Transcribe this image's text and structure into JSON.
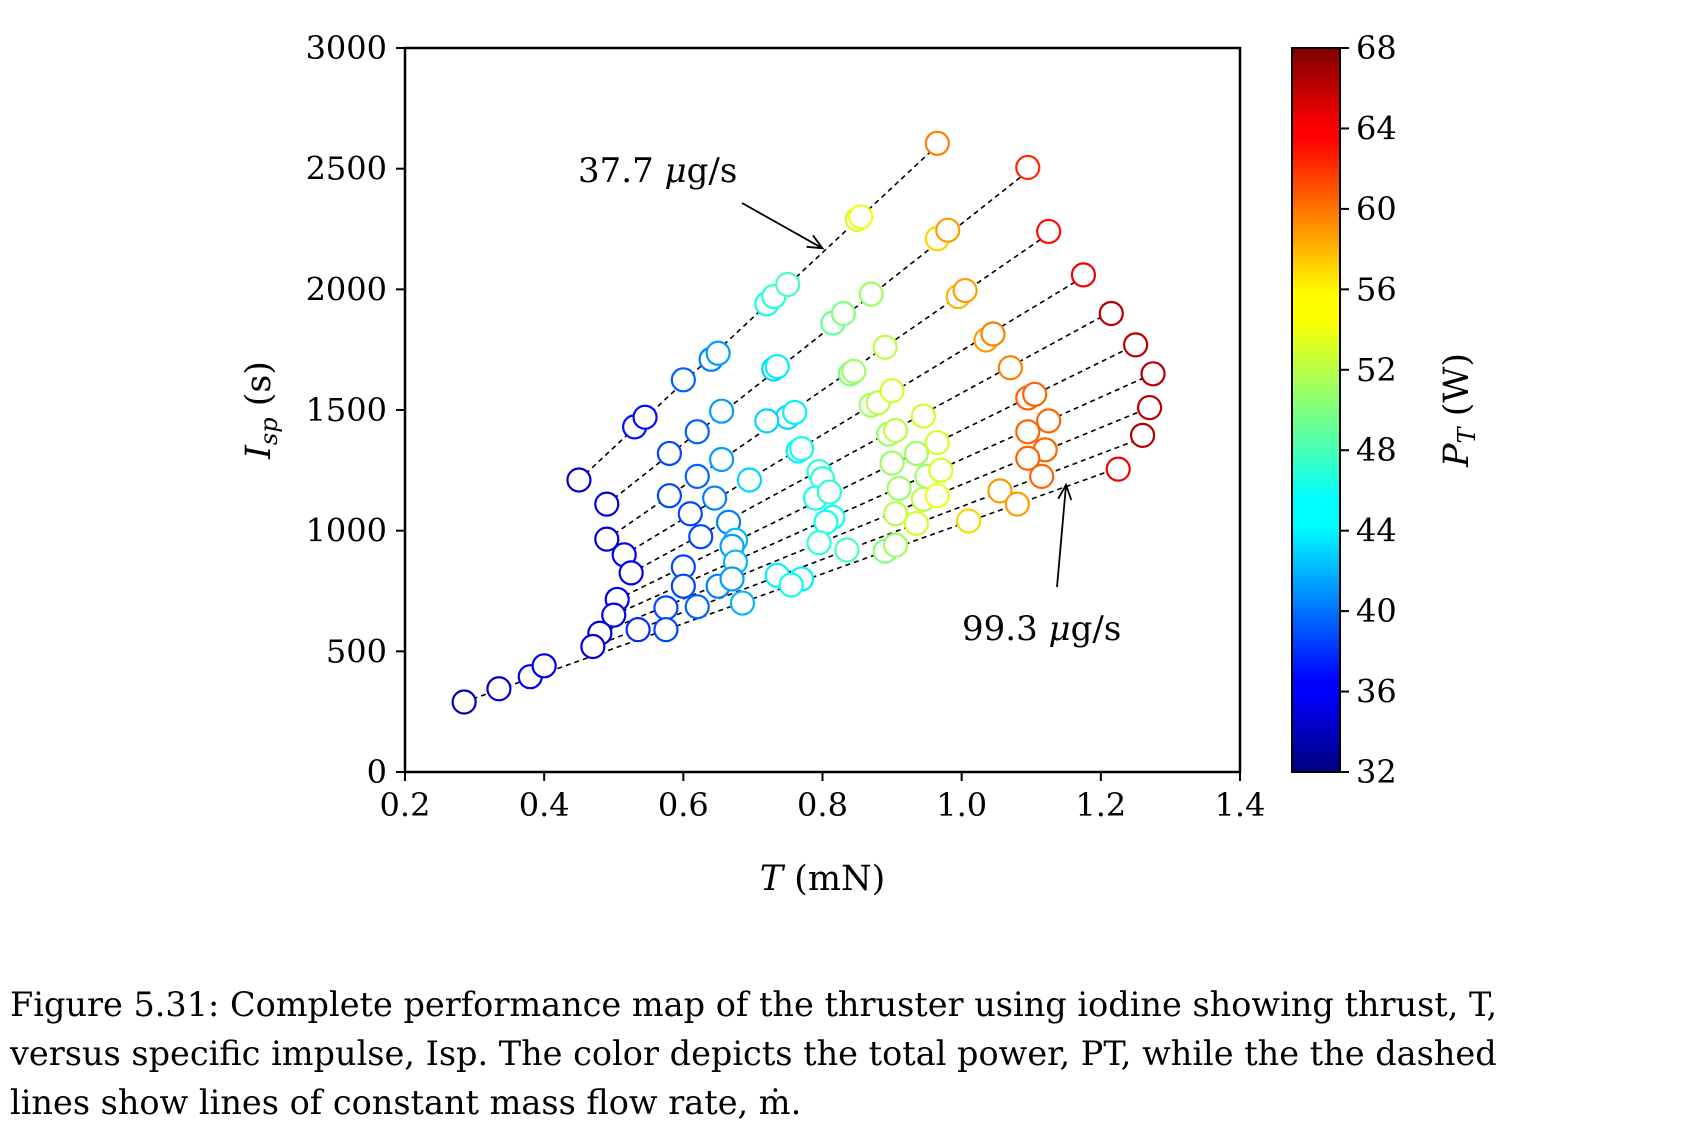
{
  "chart_data": {
    "type": "scatter",
    "xlabel": "T (mN)",
    "ylabel": "I_sp (s)",
    "colorbar_label": "P_T (W)",
    "colormap": "jet",
    "xlim": [
      0.2,
      1.4
    ],
    "ylim": [
      0,
      3000
    ],
    "xticks": [
      "0.2",
      "0.4",
      "0.6",
      "0.8",
      "1.0",
      "1.2",
      "1.4"
    ],
    "yticks": [
      "0",
      "500",
      "1000",
      "1500",
      "2000",
      "2500",
      "3000"
    ],
    "colorbar_range": [
      32,
      68
    ],
    "colorbar_ticks": [
      "32",
      "36",
      "40",
      "44",
      "48",
      "52",
      "56",
      "60",
      "64",
      "68"
    ],
    "annotations": [
      {
        "text": "37.7 μg/s",
        "points_to": [
          0.8,
          2170
        ]
      },
      {
        "text": "99.3 μg/s",
        "points_to": [
          1.15,
          1190
        ]
      }
    ],
    "series": [
      {
        "dashed_line": [
          [
            0.45,
            1210
          ],
          [
            0.97,
            2610
          ]
        ],
        "points": [
          [
            0.45,
            1210,
            35
          ],
          [
            0.53,
            1430,
            37
          ],
          [
            0.545,
            1470,
            37
          ],
          [
            0.6,
            1625,
            40
          ],
          [
            0.64,
            1710,
            41
          ],
          [
            0.65,
            1735,
            42
          ],
          [
            0.72,
            1940,
            46
          ],
          [
            0.73,
            1970,
            47
          ],
          [
            0.75,
            2020,
            48
          ],
          [
            0.85,
            2290,
            53
          ],
          [
            0.855,
            2300,
            54
          ],
          [
            0.965,
            2605,
            59
          ]
        ]
      },
      {
        "dashed_line": [
          [
            0.49,
            1110
          ],
          [
            1.1,
            2500
          ]
        ],
        "points": [
          [
            0.49,
            1110,
            35
          ],
          [
            0.58,
            1320,
            39
          ],
          [
            0.62,
            1410,
            40
          ],
          [
            0.655,
            1495,
            42
          ],
          [
            0.73,
            1670,
            44
          ],
          [
            0.735,
            1680,
            45
          ],
          [
            0.75,
            1470,
            44
          ],
          [
            0.76,
            1490,
            45
          ],
          [
            0.815,
            1860,
            49
          ],
          [
            0.83,
            1900,
            50
          ],
          [
            0.87,
            1980,
            51
          ],
          [
            0.965,
            2210,
            56
          ],
          [
            0.98,
            2245,
            58
          ],
          [
            1.095,
            2505,
            62
          ]
        ]
      },
      {
        "dashed_line": [
          [
            0.49,
            965
          ],
          [
            1.13,
            2240
          ]
        ],
        "points": [
          [
            0.49,
            965,
            35
          ],
          [
            0.58,
            1145,
            39
          ],
          [
            0.62,
            1225,
            40
          ],
          [
            0.655,
            1295,
            42
          ],
          [
            0.72,
            1455,
            44
          ],
          [
            0.765,
            1330,
            45
          ],
          [
            0.77,
            1340,
            46
          ],
          [
            0.84,
            1650,
            50
          ],
          [
            0.845,
            1660,
            51
          ],
          [
            0.89,
            1760,
            52
          ],
          [
            0.995,
            1970,
            57
          ],
          [
            1.005,
            1995,
            58
          ],
          [
            1.125,
            2240,
            63
          ]
        ]
      },
      {
        "dashed_line": [
          [
            0.515,
            900
          ],
          [
            1.18,
            2060
          ]
        ],
        "points": [
          [
            0.515,
            900,
            36
          ],
          [
            0.61,
            1070,
            39
          ],
          [
            0.645,
            1135,
            41
          ],
          [
            0.695,
            1210,
            44
          ],
          [
            0.795,
            1245,
            47
          ],
          [
            0.87,
            1520,
            51
          ],
          [
            0.88,
            1530,
            52
          ],
          [
            0.9,
            1580,
            53
          ],
          [
            1.035,
            1790,
            58
          ],
          [
            1.045,
            1815,
            59
          ],
          [
            1.175,
            2060,
            64
          ]
        ]
      },
      {
        "dashed_line": [
          [
            0.525,
            825
          ],
          [
            1.21,
            1900
          ]
        ],
        "points": [
          [
            0.525,
            825,
            36
          ],
          [
            0.625,
            975,
            39
          ],
          [
            0.665,
            1035,
            41
          ],
          [
            0.675,
            960,
            43
          ],
          [
            0.8,
            1215,
            47
          ],
          [
            0.895,
            1400,
            51
          ],
          [
            0.905,
            1415,
            52
          ],
          [
            0.945,
            1475,
            53
          ],
          [
            1.07,
            1675,
            59
          ],
          [
            1.215,
            1900,
            66
          ]
        ]
      },
      {
        "dashed_line": [
          [
            0.505,
            715
          ],
          [
            1.25,
            1770
          ]
        ],
        "points": [
          [
            0.505,
            715,
            36
          ],
          [
            0.6,
            850,
            39
          ],
          [
            0.67,
            935,
            42
          ],
          [
            0.79,
            1135,
            46
          ],
          [
            0.81,
            1160,
            47
          ],
          [
            0.935,
            1320,
            51
          ],
          [
            0.965,
            1365,
            53
          ],
          [
            1.095,
            1550,
            60
          ],
          [
            1.105,
            1565,
            60
          ],
          [
            1.25,
            1770,
            66
          ]
        ]
      },
      {
        "dashed_line": [
          [
            0.5,
            650
          ],
          [
            1.275,
            1650
          ]
        ],
        "points": [
          [
            0.5,
            650,
            36
          ],
          [
            0.6,
            770,
            39
          ],
          [
            0.675,
            870,
            43
          ],
          [
            0.815,
            1055,
            46
          ],
          [
            0.9,
            1280,
            51
          ],
          [
            0.95,
            1225,
            51
          ],
          [
            1.095,
            1410,
            60
          ],
          [
            1.125,
            1455,
            60
          ],
          [
            1.275,
            1650,
            66
          ]
        ]
      },
      {
        "dashed_line": [
          [
            0.48,
            575
          ],
          [
            1.27,
            1510
          ]
        ],
        "points": [
          [
            0.48,
            575,
            35
          ],
          [
            0.575,
            680,
            39
          ],
          [
            0.65,
            770,
            41
          ],
          [
            0.67,
            800,
            42
          ],
          [
            0.805,
            1035,
            46
          ],
          [
            0.91,
            1175,
            51
          ],
          [
            0.945,
            1130,
            52
          ],
          [
            0.97,
            1250,
            53
          ],
          [
            1.12,
            1335,
            60
          ],
          [
            1.27,
            1510,
            66
          ]
        ]
      },
      {
        "dashed_line": [
          [
            0.47,
            520
          ],
          [
            1.265,
            1390
          ]
        ],
        "points": [
          [
            0.47,
            520,
            35
          ],
          [
            0.535,
            590,
            38
          ],
          [
            0.62,
            685,
            40
          ],
          [
            0.685,
            700,
            43
          ],
          [
            0.77,
            800,
            45
          ],
          [
            0.795,
            950,
            47
          ],
          [
            0.835,
            920,
            48
          ],
          [
            0.905,
            1070,
            52
          ],
          [
            0.935,
            1030,
            53
          ],
          [
            0.965,
            1145,
            54
          ],
          [
            1.095,
            1300,
            60
          ],
          [
            1.115,
            1225,
            60
          ],
          [
            1.26,
            1395,
            66
          ]
        ]
      },
      {
        "dashed_line": [
          [
            0.285,
            290
          ],
          [
            1.225,
            1260
          ]
        ],
        "points": [
          [
            0.285,
            290,
            34
          ],
          [
            0.335,
            345,
            35
          ],
          [
            0.38,
            395,
            36
          ],
          [
            0.4,
            440,
            36
          ],
          [
            0.575,
            590,
            39
          ],
          [
            0.735,
            815,
            45
          ],
          [
            0.755,
            775,
            46
          ],
          [
            0.89,
            915,
            50
          ],
          [
            0.905,
            940,
            51
          ],
          [
            1.01,
            1040,
            56
          ],
          [
            1.055,
            1165,
            58
          ],
          [
            1.08,
            1110,
            58
          ],
          [
            1.225,
            1255,
            64
          ]
        ]
      }
    ]
  },
  "caption": {
    "line1": "Figure 5.31: Complete performance map of the thruster using iodine showing thrust, T,",
    "line2": "versus specific impulse, Isp. The color depicts the total power, PT, while the the dashed",
    "line3": "lines show lines of constant mass flow rate, ṁ."
  }
}
